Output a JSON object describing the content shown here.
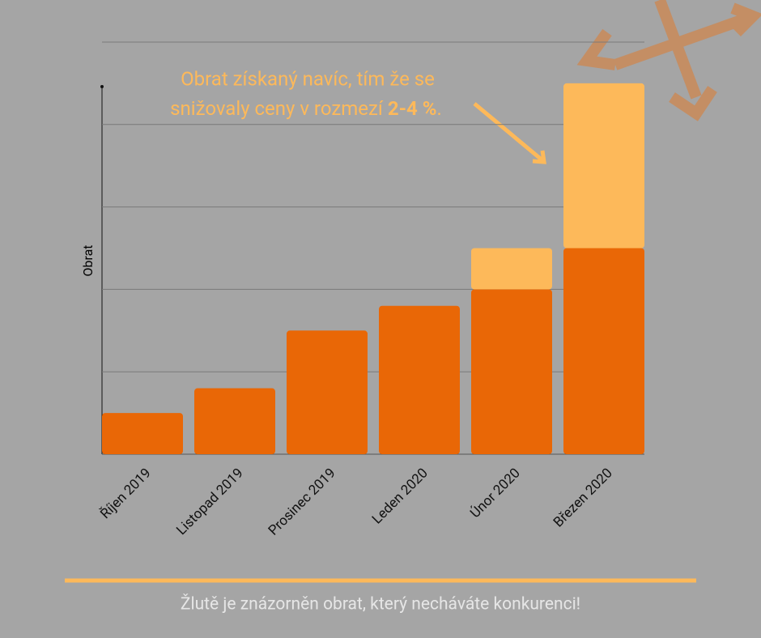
{
  "chart_data": {
    "type": "stacked-bar",
    "y_label": "Obrat",
    "annotation": {
      "line1": "Obrat získaný navíc, tím že se",
      "line2": "snižovaly ceny  v rozmezí ",
      "bold": "2-4 %",
      "end": "."
    },
    "footer": "Žlutě je znázorněn obrat, který necháváte konkurenci!",
    "categories": [
      "Říjen 2019",
      "Listopad 2019",
      "Prosinec 2019",
      "Leden 2020",
      "Únor 2020",
      "Březen 2020"
    ],
    "series": [
      {
        "color": "#e96706",
        "values": [
          0.5,
          0.8,
          1.5,
          1.8,
          2.0,
          2.5
        ]
      },
      {
        "color": "#fdb95a",
        "values": [
          null,
          null,
          null,
          null,
          0.5,
          2.0
        ]
      }
    ],
    "ylim": [
      0,
      5
    ],
    "yticks": [
      0,
      1,
      2,
      3,
      4,
      5
    ],
    "grid": true
  }
}
